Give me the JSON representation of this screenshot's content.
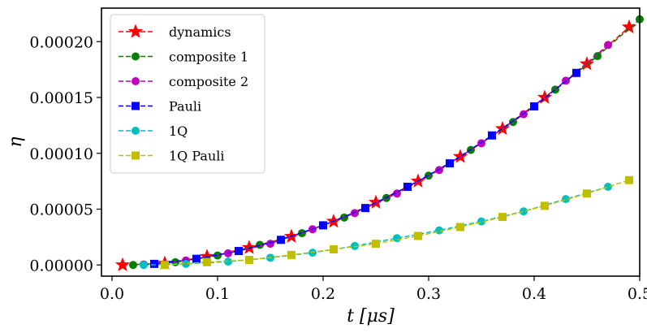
{
  "chart_data": {
    "type": "line",
    "title": "",
    "xlabel": "t [μs]",
    "ylabel": "η",
    "xlim": [
      -0.01,
      0.5
    ],
    "ylim": [
      -1e-05,
      0.00023
    ],
    "x_ticks": [
      "0.0",
      "0.1",
      "0.2",
      "0.3",
      "0.4",
      "0.5"
    ],
    "y_ticks": [
      "0.00000",
      "0.00005",
      "0.00010",
      "0.00015",
      "0.00020"
    ],
    "legend_position": "top-left",
    "series": [
      {
        "name": "dynamics",
        "color": "#ff0000",
        "marker": "star",
        "x": [
          0.01,
          0.05,
          0.09,
          0.13,
          0.17,
          0.21,
          0.25,
          0.29,
          0.33,
          0.37,
          0.41,
          0.45,
          0.49
        ],
        "y": [
          0.0,
          1.5e-06,
          7.5e-06,
          1.55e-05,
          2.55e-05,
          3.9e-05,
          5.6e-05,
          7.5e-05,
          9.7e-05,
          0.000122,
          0.00015,
          0.00018,
          0.000213
        ]
      },
      {
        "name": "composite 1",
        "color": "#008000",
        "marker": "circle",
        "x": [
          0.02,
          0.06,
          0.1,
          0.14,
          0.18,
          0.22,
          0.26,
          0.3,
          0.34,
          0.38,
          0.42,
          0.46,
          0.5
        ],
        "y": [
          0.0,
          2.5e-06,
          8.5e-06,
          1.8e-05,
          2.85e-05,
          4.25e-05,
          6e-05,
          8e-05,
          0.000103,
          0.000128,
          0.000157,
          0.000187,
          0.00022
        ]
      },
      {
        "name": "composite 2",
        "color": "#c000c0",
        "marker": "circle",
        "x": [
          0.03,
          0.07,
          0.11,
          0.15,
          0.19,
          0.23,
          0.27,
          0.31,
          0.35,
          0.39,
          0.43,
          0.47
        ],
        "y": [
          5e-07,
          4e-06,
          1.05e-05,
          1.9e-05,
          3.2e-05,
          4.65e-05,
          6.4e-05,
          8.5e-05,
          0.000109,
          0.000135,
          0.000165,
          0.000197
        ]
      },
      {
        "name": "Pauli",
        "color": "#0000ff",
        "marker": "square",
        "x": [
          0.04,
          0.08,
          0.12,
          0.16,
          0.2,
          0.24,
          0.28,
          0.32,
          0.36,
          0.4,
          0.44
        ],
        "y": [
          1e-06,
          5.5e-06,
          1.25e-05,
          2.25e-05,
          3.55e-05,
          5.1e-05,
          7e-05,
          9.1e-05,
          0.000116,
          0.000142,
          0.000172
        ]
      },
      {
        "name": "1Q",
        "color": "#00bfbf",
        "marker": "circle",
        "x": [
          0.03,
          0.07,
          0.11,
          0.15,
          0.19,
          0.23,
          0.27,
          0.31,
          0.35,
          0.39,
          0.43,
          0.47
        ],
        "y": [
          0.0,
          1e-06,
          3e-06,
          6.5e-06,
          1.1e-05,
          1.7e-05,
          2.4e-05,
          3.1e-05,
          3.9e-05,
          4.8e-05,
          5.9e-05,
          7e-05
        ]
      },
      {
        "name": "1Q Pauli",
        "color": "#bfbf00",
        "marker": "square",
        "x": [
          0.05,
          0.09,
          0.13,
          0.17,
          0.21,
          0.25,
          0.29,
          0.33,
          0.37,
          0.41,
          0.45,
          0.49
        ],
        "y": [
          0.0,
          2.5e-06,
          4.5e-06,
          9e-06,
          1.4e-05,
          1.9e-05,
          2.6e-05,
          3.4e-05,
          4.3e-05,
          5.3e-05,
          6.4e-05,
          7.6e-05
        ]
      }
    ]
  }
}
